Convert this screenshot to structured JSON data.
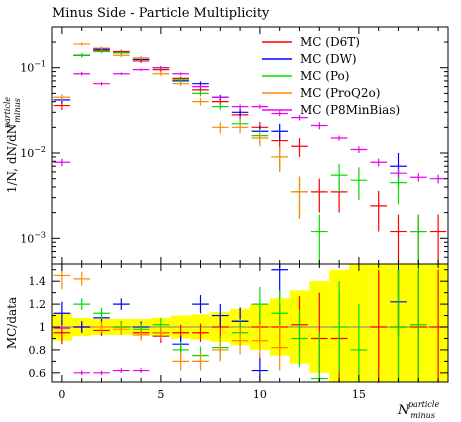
{
  "chart_data": {
    "type": "scatter",
    "title": "Minus Side - Particle Multiplicity",
    "xlabel": {
      "main": "N",
      "sup": "particle",
      "sub": "minus"
    },
    "main_panel": {
      "ylabel": {
        "main": "1/N, dN/dN",
        "sup": "particle",
        "sub": "minus"
      },
      "yscale": "log",
      "ylim": [
        0.0005,
        0.3
      ],
      "yticks": [
        {
          "value": 0.001,
          "base": "10",
          "exp": "−3"
        },
        {
          "value": 0.01,
          "base": "10",
          "exp": "−2"
        },
        {
          "value": 0.1,
          "base": "10",
          "exp": "−1"
        }
      ]
    },
    "ratio_panel": {
      "ylabel": "MC/data",
      "ylim": [
        0.52,
        1.55
      ],
      "yticks": [
        {
          "value": 0.6,
          "label": "0.6"
        },
        {
          "value": 0.8,
          "label": "0.8"
        },
        {
          "value": 1.0,
          "label": "1"
        },
        {
          "value": 1.2,
          "label": "1.2"
        },
        {
          "value": 1.4,
          "label": "1.4"
        }
      ],
      "data_band": [
        0.12,
        0.08,
        0.07,
        0.07,
        0.07,
        0.08,
        0.1,
        0.11,
        0.13,
        0.16,
        0.2,
        0.25,
        0.32,
        0.4,
        0.5,
        0.55,
        0.55,
        0.55,
        0.55,
        0.55
      ]
    },
    "xlim": [
      -0.5,
      19.5
    ],
    "xticks": [
      {
        "value": 0,
        "label": "0"
      },
      {
        "value": 5,
        "label": "5"
      },
      {
        "value": 10,
        "label": "10"
      },
      {
        "value": 15,
        "label": "15"
      }
    ],
    "x": [
      0,
      1,
      2,
      3,
      4,
      5,
      6,
      7,
      8,
      9,
      10,
      11,
      12,
      13,
      14,
      15,
      16,
      17,
      18,
      19
    ],
    "legend": {
      "position": "top-right"
    },
    "series": [
      {
        "name": "MC (D6T)",
        "color": "#ff0000",
        "values": [
          0.036,
          0.14,
          0.16,
          0.155,
          0.12,
          0.095,
          0.075,
          0.055,
          0.04,
          0.028,
          0.02,
          0.014,
          0.012,
          0.0035,
          0.0035,
          null,
          0.0024,
          0.0012,
          0.0012,
          0.0012
        ],
        "errors": [
          0.004,
          0.007,
          0.007,
          0.007,
          0.006,
          0.005,
          0.004,
          0.004,
          0.003,
          0.003,
          0.003,
          0.003,
          0.003,
          0.0015,
          0.0015,
          null,
          0.0012,
          0.0007,
          0.0007,
          0.0007
        ],
        "ratio": [
          0.95,
          1.0,
          0.97,
          1.0,
          0.95,
          0.92,
          0.95,
          0.95,
          1.0,
          1.05,
          1.0,
          1.0,
          1.02,
          0.9,
          0.9,
          null,
          1.0,
          1.0,
          1.0,
          1.0
        ],
        "ratio_err": [
          0.1,
          0.05,
          0.05,
          0.05,
          0.05,
          0.06,
          0.07,
          0.08,
          0.1,
          0.12,
          0.15,
          0.2,
          0.25,
          0.4,
          0.4,
          null,
          0.5,
          0.5,
          0.5,
          0.5
        ]
      },
      {
        "name": "MC (DW)",
        "color": "#0000ff",
        "values": [
          0.042,
          0.14,
          0.165,
          0.15,
          0.125,
          0.1,
          0.07,
          0.065,
          0.045,
          0.03,
          0.018,
          0.018,
          null,
          null,
          null,
          null,
          null,
          0.007,
          null,
          null
        ],
        "errors": [
          0.004,
          0.007,
          0.007,
          0.007,
          0.006,
          0.005,
          0.004,
          0.004,
          0.003,
          0.003,
          0.003,
          0.004,
          null,
          null,
          null,
          null,
          null,
          0.003,
          null,
          null
        ],
        "ratio": [
          1.12,
          1.0,
          1.08,
          1.2,
          1.0,
          0.95,
          0.85,
          1.2,
          1.1,
          1.05,
          0.62,
          1.5,
          null,
          null,
          null,
          null,
          null,
          1.22,
          null,
          null
        ],
        "ratio_err": [
          0.1,
          0.05,
          0.05,
          0.05,
          0.05,
          0.06,
          0.07,
          0.08,
          0.1,
          0.12,
          0.15,
          0.25,
          null,
          null,
          null,
          null,
          null,
          0.3,
          null,
          null
        ]
      },
      {
        "name": "MC (Po)",
        "color": "#00dd00",
        "values": [
          null,
          0.14,
          0.155,
          0.15,
          0.13,
          0.1,
          0.072,
          0.05,
          0.035,
          0.022,
          0.016,
          0.009,
          0.0035,
          0.0012,
          0.0055,
          0.0048,
          null,
          0.0045,
          0.0012,
          null
        ],
        "errors": [
          null,
          0.007,
          0.007,
          0.007,
          0.006,
          0.005,
          0.004,
          0.004,
          0.003,
          0.003,
          0.003,
          0.003,
          0.0018,
          0.0007,
          0.002,
          0.002,
          null,
          0.002,
          0.0007,
          null
        ],
        "ratio": [
          null,
          1.2,
          1.12,
          1.0,
          0.98,
          1.02,
          0.8,
          0.75,
          0.82,
          0.95,
          1.2,
          1.12,
          0.9,
          0.55,
          1.0,
          0.8,
          null,
          1.0,
          1.02,
          null
        ],
        "ratio_err": [
          null,
          0.05,
          0.05,
          0.05,
          0.05,
          0.06,
          0.07,
          0.08,
          0.1,
          0.12,
          0.15,
          0.2,
          0.25,
          0.4,
          0.4,
          0.4,
          null,
          0.5,
          0.5,
          null
        ]
      },
      {
        "name": "MC (ProQ2o)",
        "color": "#ff8800",
        "values": [
          0.045,
          0.19,
          0.17,
          0.14,
          0.13,
          0.085,
          0.065,
          0.04,
          0.02,
          0.02,
          0.015,
          0.009,
          0.0035,
          null,
          null,
          null,
          null,
          null,
          null,
          null
        ],
        "errors": [
          0.004,
          0.008,
          0.007,
          0.007,
          0.006,
          0.005,
          0.004,
          0.004,
          0.003,
          0.003,
          0.003,
          0.003,
          0.0018,
          null,
          null,
          null,
          null,
          null,
          null,
          null
        ],
        "ratio": [
          1.45,
          1.42,
          1.0,
          0.98,
          0.93,
          0.95,
          0.7,
          0.7,
          0.8,
          0.88,
          0.88,
          0.82,
          null,
          null,
          null,
          null,
          null,
          null,
          null,
          null
        ],
        "ratio_err": [
          0.12,
          0.06,
          0.05,
          0.05,
          0.05,
          0.06,
          0.08,
          0.08,
          0.1,
          0.12,
          0.15,
          0.2,
          null,
          null,
          null,
          null,
          null,
          null,
          null,
          null
        ]
      },
      {
        "name": "MC (P8MinBias)",
        "color": "#ee00ee",
        "values": [
          0.0078,
          0.085,
          0.065,
          0.085,
          0.095,
          0.1,
          0.085,
          0.06,
          0.045,
          0.035,
          0.035,
          0.029,
          0.026,
          0.021,
          0.015,
          0.011,
          0.0078,
          0.0058,
          0.0052,
          0.005
        ],
        "errors": [
          0.0008,
          0.004,
          0.003,
          0.003,
          0.003,
          0.003,
          0.003,
          0.003,
          0.002,
          0.002,
          0.002,
          0.002,
          0.002,
          0.002,
          0.001,
          0.001,
          0.0008,
          0.0006,
          0.0006,
          0.0006
        ],
        "ratio": [
          0.99,
          0.6,
          0.6,
          0.62,
          0.62,
          null,
          null,
          null,
          null,
          null,
          null,
          null,
          null,
          null,
          null,
          null,
          null,
          null,
          null,
          null
        ],
        "ratio_err": [
          0.02,
          0.02,
          0.02,
          0.02,
          0.02,
          null,
          null,
          null,
          null,
          null,
          null,
          null,
          null,
          null,
          null,
          null,
          null,
          null,
          null,
          null
        ]
      }
    ]
  }
}
